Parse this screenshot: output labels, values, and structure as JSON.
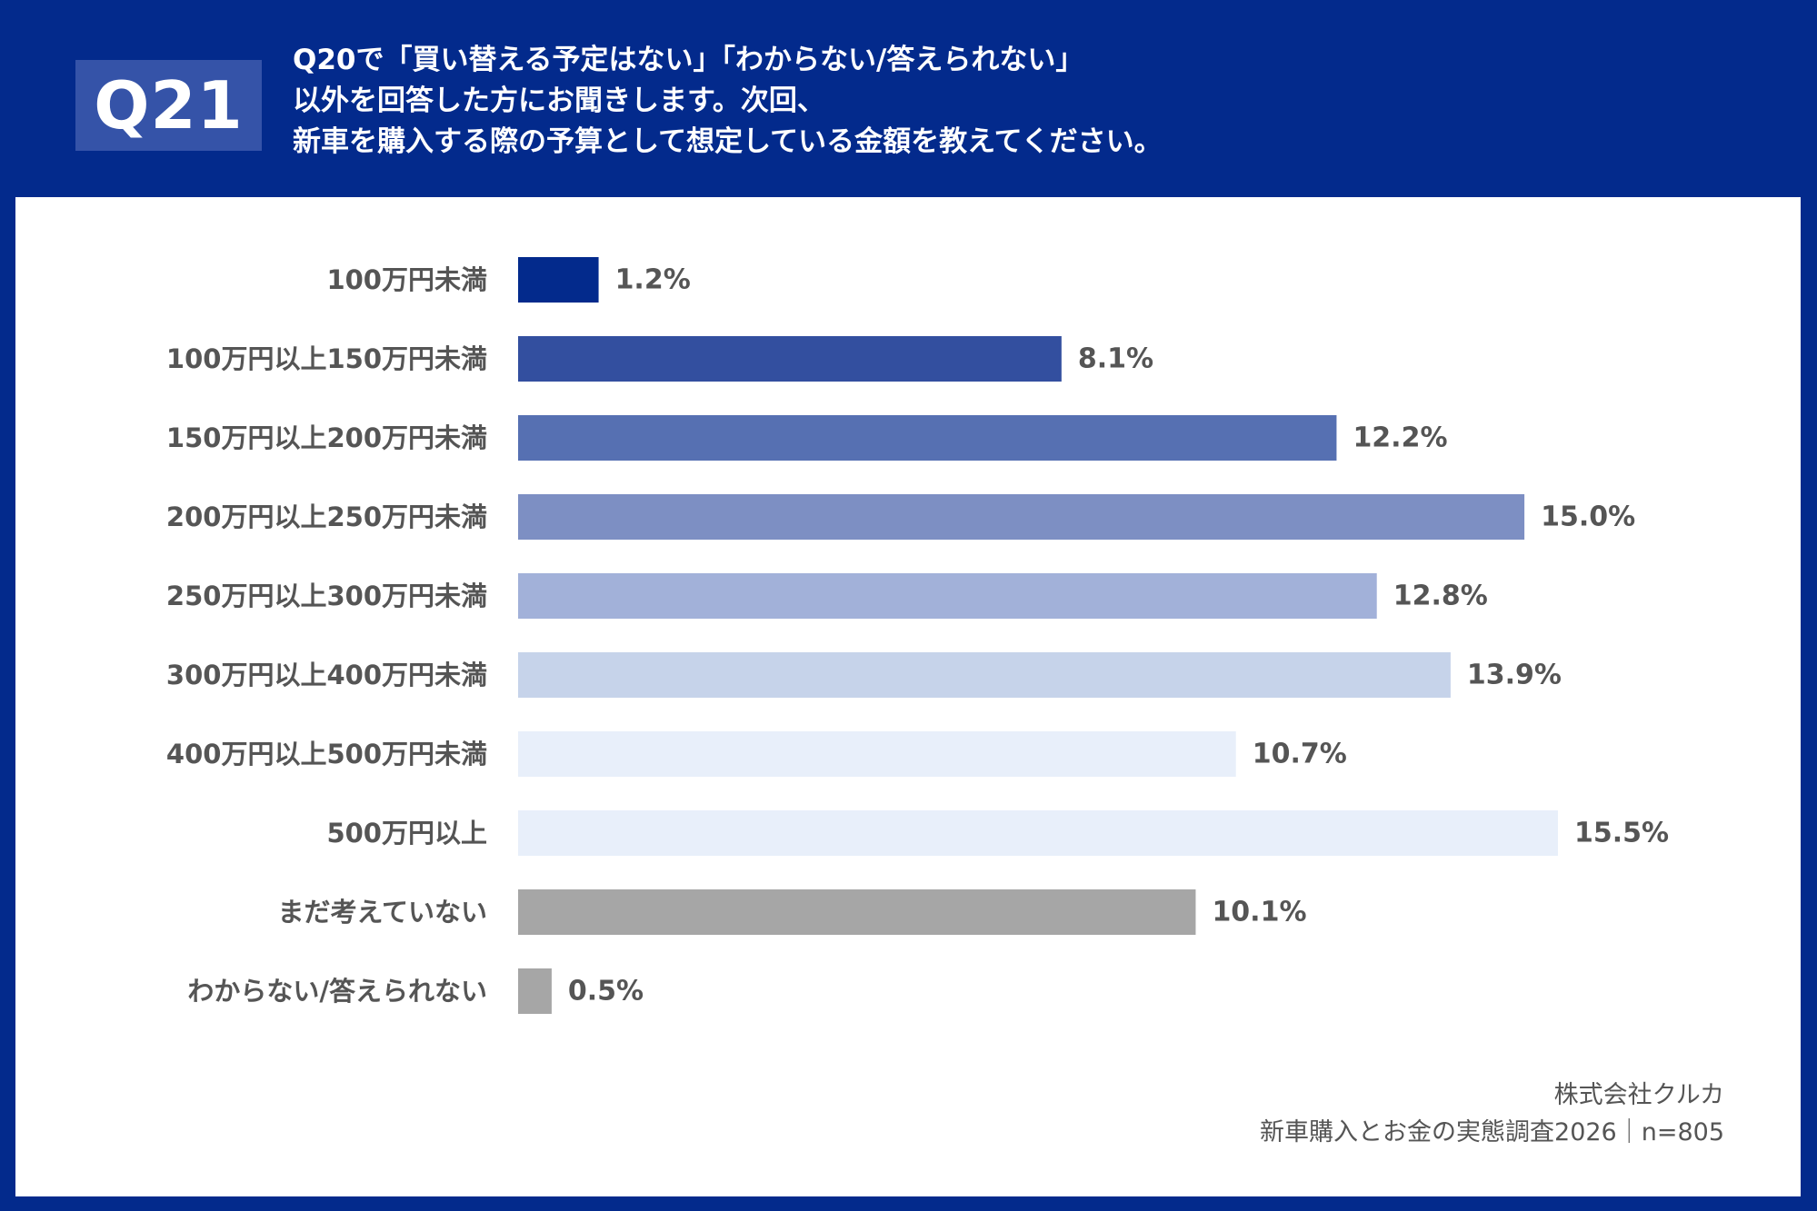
{
  "header": {
    "badge": "Q21",
    "question_lines": [
      "Q20で「買い替える予定はない」「わからない/答えられない」",
      "以外を回答した方にお聞きします。次回、",
      "新車を購入する際の予算として想定している金額を教えてください。"
    ]
  },
  "colors": {
    "header_bg": "#032a8c",
    "panel_bg": "#ffffff",
    "text": "#555555"
  },
  "chart_data": {
    "type": "bar",
    "orientation": "horizontal",
    "title": "Q20で「買い替える予定はない」「わからない/答えられない」以外を回答した方にお聞きします。次回、新車を購入する際の予算として想定している金額を教えてください。",
    "categories": [
      "100万円未満",
      "100万円以上150万円未満",
      "150万円以上200万円未満",
      "200万円以上250万円未満",
      "250万円以上300万円未満",
      "300万円以上400万円未満",
      "400万円以上500万円未満",
      "500万円以上",
      "まだ考えていない",
      "わからない/答えられない"
    ],
    "values": [
      1.2,
      8.1,
      12.2,
      15.0,
      12.8,
      13.9,
      10.7,
      15.5,
      10.1,
      0.5
    ],
    "value_labels": [
      "1.2%",
      "8.1%",
      "12.2%",
      "15.0%",
      "12.8%",
      "13.9%",
      "10.7%",
      "15.5%",
      "10.1%",
      "0.5%"
    ],
    "bar_colors": [
      "#032a8c",
      "#334f9f",
      "#5670b2",
      "#7d8fc3",
      "#a2b1d9",
      "#c6d3ea",
      "#e8effa",
      "#e8effa",
      "#a6a6a6",
      "#a6a6a6"
    ],
    "unit": "%",
    "xlim": [
      0,
      15.5
    ],
    "grid": false,
    "legend": "none"
  },
  "footer": {
    "company": "株式会社クルカ",
    "survey": "新車購入とお金の実態調査2026｜n=805"
  }
}
